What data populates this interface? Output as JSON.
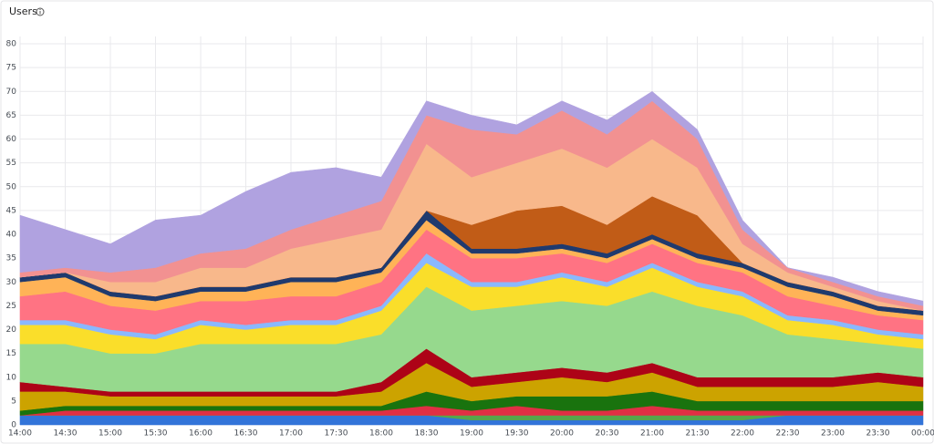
{
  "chart_data": {
    "type": "stacked-area",
    "title": "Users",
    "categories": [
      "14:00",
      "14:30",
      "15:00",
      "15:30",
      "16:00",
      "16:30",
      "17:00",
      "17:30",
      "18:00",
      "18:30",
      "19:00",
      "19:30",
      "20:00",
      "20:30",
      "21:00",
      "21:30",
      "22:00",
      "22:30",
      "23:00",
      "23:30",
      "00:00"
    ],
    "ylim": [
      0,
      80
    ],
    "yticks": [
      0,
      5,
      10,
      15,
      20,
      25,
      30,
      35,
      40,
      45,
      50,
      55,
      60,
      65,
      70,
      75,
      80
    ],
    "grid": true,
    "series": [
      {
        "color": "#3274d9",
        "values": [
          2,
          2,
          2,
          2,
          2,
          2,
          2,
          2,
          2,
          2,
          1,
          1,
          1,
          1,
          1,
          1,
          1,
          2,
          2,
          2,
          2
        ]
      },
      {
        "color": "#56a64b",
        "values": [
          0,
          0,
          0,
          0,
          0,
          0,
          0,
          0,
          0,
          0,
          1,
          1,
          1,
          1,
          1,
          1,
          1,
          0,
          0,
          0,
          0
        ]
      },
      {
        "color": "#e02f44",
        "values": [
          0,
          1,
          1,
          1,
          1,
          1,
          1,
          1,
          1,
          2,
          1,
          2,
          1,
          1,
          2,
          1,
          1,
          1,
          1,
          1,
          1
        ]
      },
      {
        "color": "#19730e",
        "values": [
          1,
          1,
          1,
          1,
          1,
          1,
          1,
          1,
          1,
          3,
          2,
          2,
          3,
          3,
          3,
          2,
          2,
          2,
          2,
          2,
          2
        ]
      },
      {
        "color": "#cca300",
        "values": [
          4,
          3,
          2,
          2,
          2,
          2,
          2,
          2,
          3,
          6,
          3,
          3,
          4,
          3,
          4,
          3,
          3,
          3,
          3,
          4,
          3
        ]
      },
      {
        "color": "#ad0317",
        "values": [
          2,
          1,
          1,
          1,
          1,
          1,
          1,
          1,
          2,
          3,
          2,
          2,
          2,
          2,
          2,
          2,
          2,
          2,
          2,
          2,
          2
        ]
      },
      {
        "color": "#96d98d",
        "values": [
          8,
          9,
          8,
          8,
          10,
          10,
          10,
          10,
          10,
          13,
          14,
          14,
          14,
          14,
          15,
          15,
          13,
          9,
          8,
          6,
          6
        ]
      },
      {
        "color": "#fade2a",
        "values": [
          4,
          4,
          4,
          3,
          4,
          3,
          4,
          4,
          5,
          5,
          5,
          4,
          5,
          4,
          5,
          4,
          4,
          3,
          3,
          2,
          2
        ]
      },
      {
        "color": "#8ab8ff",
        "values": [
          1,
          1,
          1,
          1,
          1,
          1,
          1,
          1,
          1,
          2,
          1,
          1,
          1,
          1,
          1,
          1,
          1,
          1,
          1,
          1,
          1
        ]
      },
      {
        "color": "#ff7383",
        "values": [
          5,
          6,
          5,
          5,
          4,
          5,
          5,
          5,
          5,
          5,
          5,
          5,
          4,
          4,
          4,
          4,
          4,
          4,
          3,
          3,
          3
        ]
      },
      {
        "color": "#ffb357",
        "values": [
          3,
          3,
          2,
          2,
          2,
          2,
          3,
          3,
          2,
          2,
          1,
          1,
          1,
          1,
          1,
          1,
          1,
          2,
          2,
          1,
          1
        ]
      },
      {
        "color": "#1f3a6e",
        "values": [
          1,
          1,
          1,
          1,
          1,
          1,
          1,
          1,
          1,
          2,
          1,
          1,
          1,
          1,
          1,
          1,
          1,
          1,
          1,
          1,
          1
        ]
      },
      {
        "color": "#c15c17",
        "values": [
          0,
          0,
          0,
          0,
          0,
          0,
          0,
          0,
          0,
          0,
          5,
          8,
          8,
          6,
          8,
          8,
          0,
          0,
          0,
          0,
          0
        ]
      },
      {
        "color": "#f8b88b",
        "values": [
          0,
          0,
          2,
          3,
          4,
          4,
          6,
          8,
          8,
          14,
          10,
          10,
          12,
          12,
          12,
          10,
          4,
          2,
          1,
          1,
          0
        ]
      },
      {
        "color": "#f29191",
        "values": [
          1,
          1,
          2,
          3,
          3,
          4,
          4,
          5,
          6,
          6,
          10,
          6,
          8,
          7,
          8,
          6,
          3,
          1,
          1,
          1,
          1
        ]
      },
      {
        "color": "#b0a2e0",
        "values": [
          12,
          8,
          6,
          10,
          8,
          12,
          12,
          10,
          5,
          3,
          3,
          2,
          2,
          3,
          2,
          2,
          2,
          0,
          1,
          1,
          1
        ]
      }
    ]
  }
}
